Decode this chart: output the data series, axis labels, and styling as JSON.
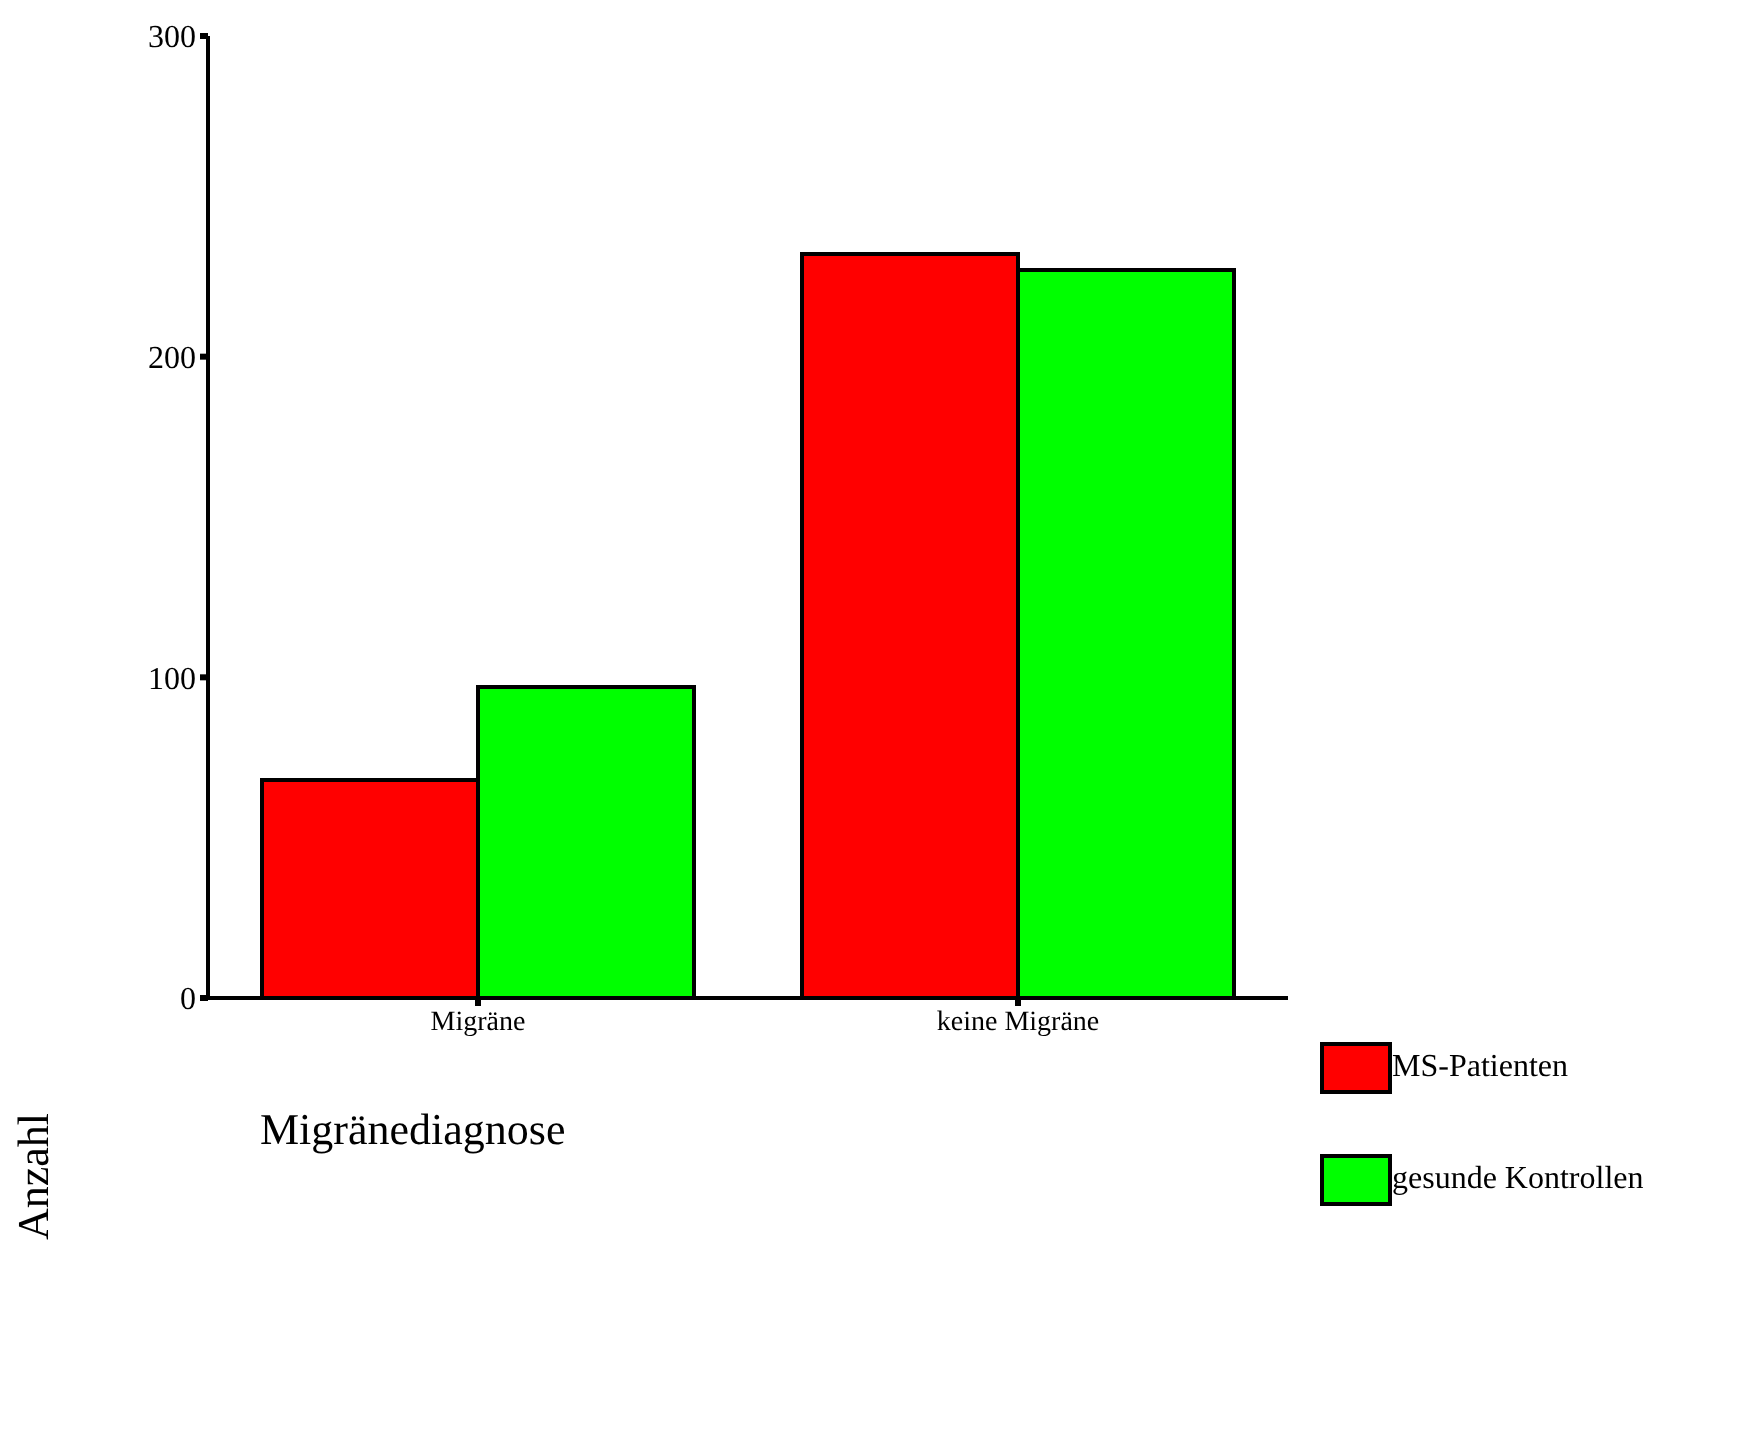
{
  "chart_data": {
    "type": "bar",
    "xlabel": "Migränediagnose",
    "ylabel": "Anzahl",
    "categories": [
      "Migräne",
      "keine Migräne"
    ],
    "series": [
      {
        "name": "MS-Patienten",
        "color": "#ff0000",
        "values": [
          68,
          232
        ]
      },
      {
        "name": "gesunde Kontrollen",
        "color": "#00ff00",
        "values": [
          97,
          227
        ]
      }
    ],
    "ylim": [
      0,
      300
    ],
    "yticks": [
      0,
      100,
      200,
      300
    ],
    "grid": false,
    "legend": "bottom right"
  }
}
